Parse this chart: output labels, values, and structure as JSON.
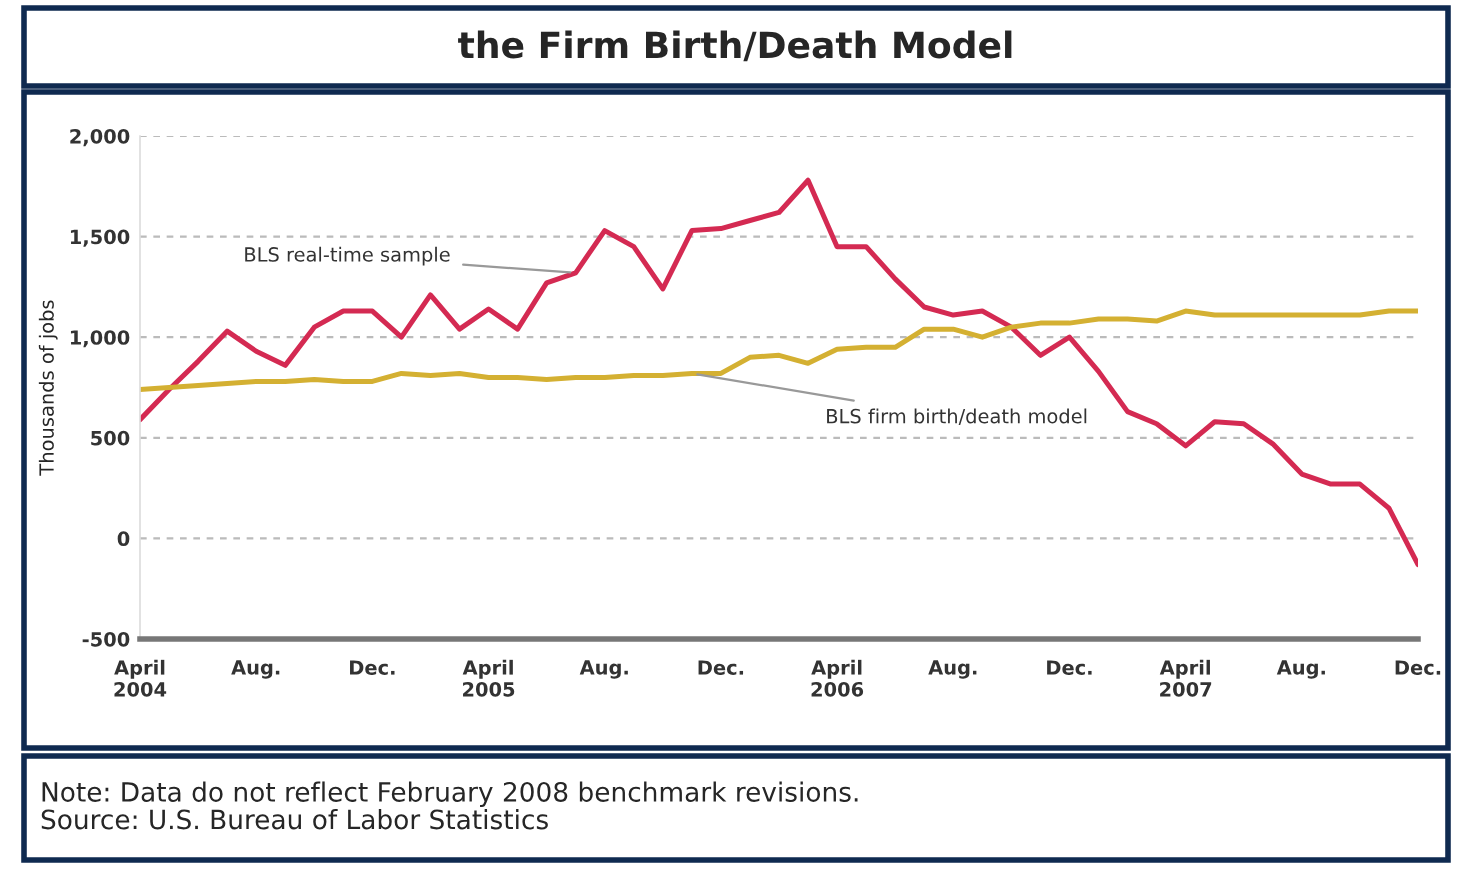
{
  "chart_data": {
    "type": "line",
    "title": "the Firm Birth/Death Model",
    "ylabel": "Thousands of jobs",
    "x": [
      "2004-04",
      "2004-05",
      "2004-06",
      "2004-07",
      "2004-08",
      "2004-09",
      "2004-10",
      "2004-11",
      "2004-12",
      "2005-01",
      "2005-02",
      "2005-03",
      "2005-04",
      "2005-05",
      "2005-06",
      "2005-07",
      "2005-08",
      "2005-09",
      "2005-10",
      "2005-11",
      "2005-12",
      "2006-01",
      "2006-02",
      "2006-03",
      "2006-04",
      "2006-05",
      "2006-06",
      "2006-07",
      "2006-08",
      "2006-09",
      "2006-10",
      "2006-11",
      "2006-12",
      "2007-01",
      "2007-02",
      "2007-03",
      "2007-04",
      "2007-05",
      "2007-06",
      "2007-07",
      "2007-08",
      "2007-09",
      "2007-10",
      "2007-11",
      "2007-12"
    ],
    "series": [
      {
        "name": "BLS real-time sample",
        "color": "#d42a52",
        "values": [
          590,
          740,
          880,
          1030,
          930,
          860,
          1050,
          1130,
          1130,
          1000,
          1210,
          1040,
          1140,
          1040,
          1270,
          1320,
          1530,
          1450,
          1240,
          1530,
          1540,
          1580,
          1620,
          1780,
          1450,
          1450,
          1290,
          1150,
          1110,
          1130,
          1050,
          910,
          1000,
          830,
          630,
          570,
          460,
          580,
          570,
          470,
          320,
          270,
          270,
          150,
          -130
        ]
      },
      {
        "name": "BLS firm birth/death model",
        "color": "#d4b032",
        "values": [
          740,
          750,
          760,
          770,
          780,
          780,
          790,
          780,
          780,
          820,
          810,
          820,
          800,
          800,
          790,
          800,
          800,
          810,
          810,
          820,
          820,
          900,
          910,
          870,
          940,
          950,
          950,
          1040,
          1040,
          1000,
          1050,
          1070,
          1070,
          1090,
          1090,
          1080,
          1130,
          1110,
          1110,
          1110,
          1110,
          1110,
          1110,
          1130,
          1130
        ]
      }
    ],
    "xlim": [
      "2004-04",
      "2007-12"
    ],
    "xticks": [
      {
        "value": "2004-04",
        "label": "April\n2004"
      },
      {
        "value": "2004-08",
        "label": "Aug."
      },
      {
        "value": "2004-12",
        "label": "Dec."
      },
      {
        "value": "2005-04",
        "label": "April\n2005"
      },
      {
        "value": "2005-08",
        "label": "Aug."
      },
      {
        "value": "2005-12",
        "label": "Dec."
      },
      {
        "value": "2006-04",
        "label": "April\n2006"
      },
      {
        "value": "2006-08",
        "label": "Aug."
      },
      {
        "value": "2006-12",
        "label": "Dec."
      },
      {
        "value": "2007-04",
        "label": "April\n2007"
      },
      {
        "value": "2007-08",
        "label": "Aug."
      },
      {
        "value": "2007-12",
        "label": "Dec."
      }
    ],
    "ylim": [
      -500,
      2000
    ],
    "yticks": [
      {
        "value": -500,
        "label": "-500"
      },
      0,
      500,
      {
        "value": 1000,
        "label": "1,000"
      },
      {
        "value": 1500,
        "label": "1,500"
      },
      {
        "value": 2000,
        "label": "2,000"
      }
    ],
    "grid": "y",
    "legend": false,
    "line_style": "solid",
    "marker": "none",
    "annotations": [
      "Note: Data do not reflect February 2008 benchmark revisions.\nSource: U.S. Bureau of Labor Statistics"
    ]
  }
}
